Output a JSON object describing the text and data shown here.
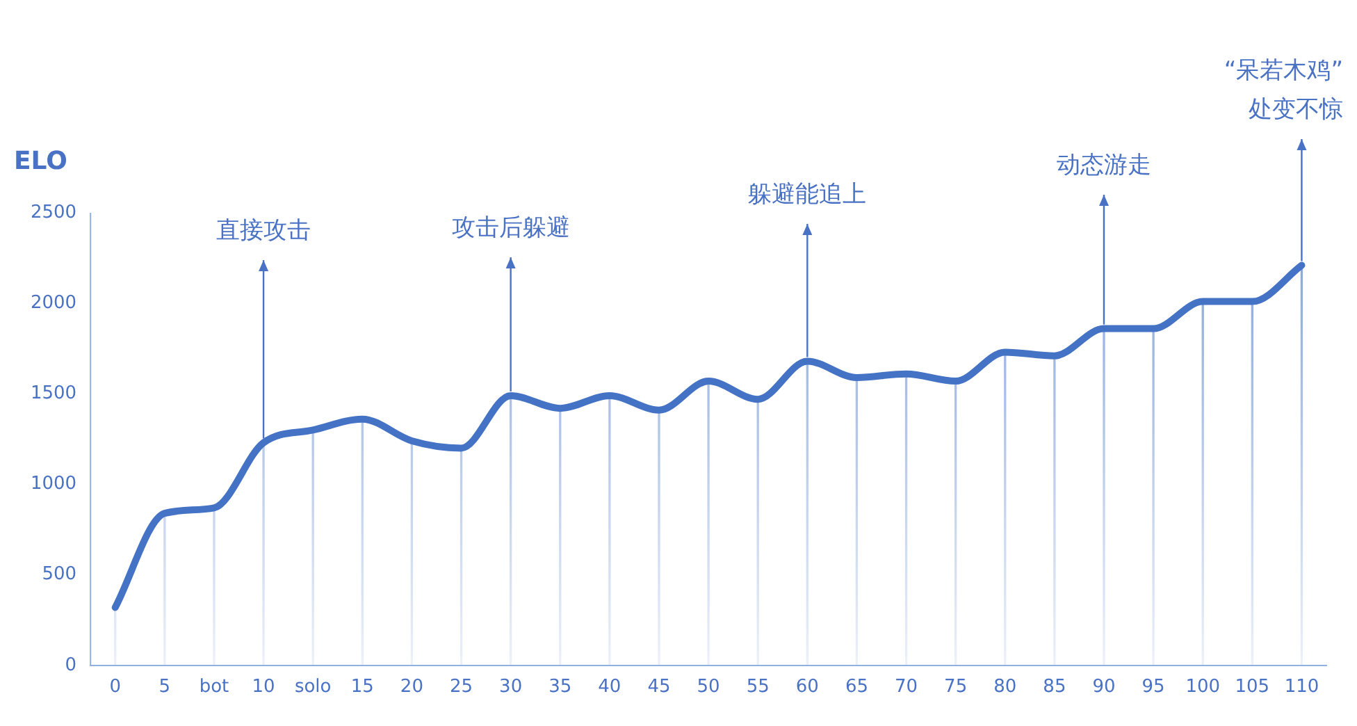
{
  "chart_data": {
    "type": "line",
    "ylabel": "ELO",
    "categories": [
      "0",
      "5",
      "bot",
      "10",
      "solo",
      "15",
      "20",
      "25",
      "30",
      "35",
      "40",
      "45",
      "50",
      "55",
      "60",
      "65",
      "70",
      "75",
      "80",
      "85",
      "90",
      "95",
      "100",
      "105",
      "110"
    ],
    "series": [
      {
        "color": "#4472c4",
        "values": [
          320,
          840,
          870,
          1230,
          1300,
          1360,
          1240,
          1200,
          1490,
          1420,
          1490,
          1410,
          1570,
          1470,
          1680,
          1590,
          1610,
          1570,
          1730,
          1710,
          1860,
          1860,
          2010,
          2010,
          2210
        ]
      },
      {
        "type": "bar",
        "color": "#7f9fd8",
        "values": [
          320,
          840,
          870,
          1230,
          1300,
          1360,
          1240,
          1200,
          1490,
          1420,
          1490,
          1410,
          1570,
          1470,
          1680,
          1590,
          1610,
          1570,
          1730,
          1710,
          1860,
          1860,
          2010,
          2010,
          2210
        ]
      }
    ],
    "ylim": [
      0,
      2500
    ],
    "yticks": [
      0,
      500,
      1000,
      1500,
      2000,
      2500
    ],
    "annotations": [
      "直接攻击",
      "攻击后躲避",
      "躲避能追上",
      "动态游走",
      "“呆若木鸡”",
      "处变不惊"
    ]
  }
}
